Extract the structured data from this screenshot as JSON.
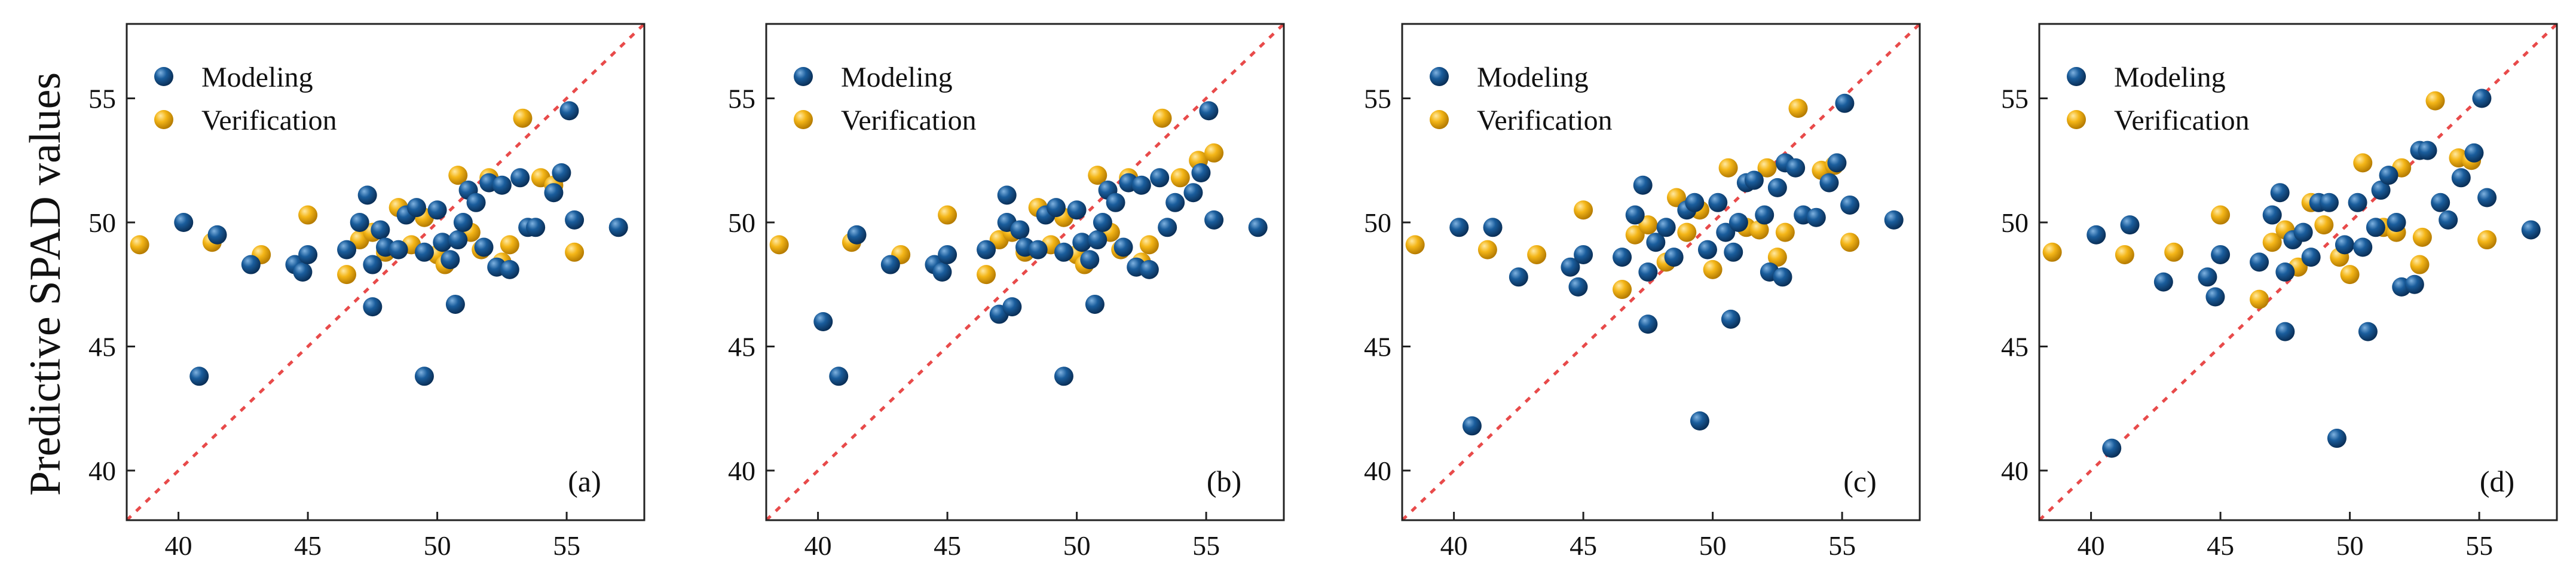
{
  "ylabel": "Predictive SPAD values",
  "colors": {
    "modeling": "#1a5d9c",
    "modeling_highlight": "#7fb2e0",
    "modeling_shadow": "#0a2f57",
    "verification": "#f4b618",
    "verification_highlight": "#ffe9a3",
    "verification_shadow": "#b57b00",
    "reference_line": "#e84a4a",
    "axis": "#222222"
  },
  "legend": {
    "modeling": "Modeling",
    "verification": "Verification"
  },
  "chart_data": [
    {
      "type": "scatter",
      "panel_label": "(a)",
      "xlim": [
        38,
        58
      ],
      "ylim": [
        38,
        58
      ],
      "xticks": [
        40,
        45,
        50,
        55
      ],
      "yticks": [
        40,
        45,
        50,
        55
      ],
      "reference_line": "y = x",
      "series": [
        {
          "name": "Modeling",
          "points": [
            [
              40.2,
              50.0
            ],
            [
              40.8,
              43.8
            ],
            [
              41.5,
              49.5
            ],
            [
              42.8,
              48.3
            ],
            [
              44.5,
              48.3
            ],
            [
              44.8,
              48.0
            ],
            [
              45.0,
              48.7
            ],
            [
              46.5,
              48.9
            ],
            [
              47.0,
              50.0
            ],
            [
              47.3,
              51.1
            ],
            [
              47.5,
              46.6
            ],
            [
              47.5,
              48.3
            ],
            [
              47.8,
              49.7
            ],
            [
              48.0,
              49.0
            ],
            [
              48.5,
              48.9
            ],
            [
              48.8,
              50.3
            ],
            [
              49.2,
              50.6
            ],
            [
              49.5,
              43.8
            ],
            [
              49.5,
              48.8
            ],
            [
              50.0,
              50.5
            ],
            [
              50.2,
              49.2
            ],
            [
              50.5,
              48.5
            ],
            [
              50.7,
              46.7
            ],
            [
              50.8,
              49.3
            ],
            [
              51.0,
              50.0
            ],
            [
              51.2,
              51.3
            ],
            [
              51.5,
              50.8
            ],
            [
              51.8,
              49.0
            ],
            [
              52.0,
              51.6
            ],
            [
              52.3,
              48.2
            ],
            [
              52.5,
              51.5
            ],
            [
              52.8,
              48.1
            ],
            [
              53.2,
              51.8
            ],
            [
              53.5,
              49.8
            ],
            [
              53.8,
              49.8
            ],
            [
              54.5,
              51.2
            ],
            [
              54.8,
              52.0
            ],
            [
              55.1,
              54.5
            ],
            [
              55.3,
              50.1
            ],
            [
              57.0,
              49.8
            ]
          ]
        },
        {
          "name": "Verification",
          "points": [
            [
              38.5,
              49.1
            ],
            [
              41.3,
              49.2
            ],
            [
              43.2,
              48.7
            ],
            [
              45.0,
              50.3
            ],
            [
              46.5,
              47.9
            ],
            [
              47.0,
              49.3
            ],
            [
              47.5,
              49.6
            ],
            [
              48.0,
              48.8
            ],
            [
              48.5,
              50.6
            ],
            [
              49.0,
              49.1
            ],
            [
              49.5,
              50.2
            ],
            [
              50.0,
              48.7
            ],
            [
              50.3,
              48.3
            ],
            [
              50.8,
              51.9
            ],
            [
              51.3,
              49.6
            ],
            [
              51.7,
              48.9
            ],
            [
              52.0,
              51.8
            ],
            [
              52.5,
              48.4
            ],
            [
              52.8,
              49.1
            ],
            [
              53.3,
              54.2
            ],
            [
              54.0,
              51.8
            ],
            [
              54.5,
              51.5
            ],
            [
              55.3,
              48.8
            ]
          ]
        }
      ]
    },
    {
      "type": "scatter",
      "panel_label": "(b)",
      "xlim": [
        38,
        58
      ],
      "ylim": [
        38,
        58
      ],
      "xticks": [
        40,
        45,
        50,
        55
      ],
      "yticks": [
        40,
        45,
        50,
        55
      ],
      "reference_line": "y = x",
      "series": [
        {
          "name": "Modeling",
          "points": [
            [
              40.2,
              46.0
            ],
            [
              40.8,
              43.8
            ],
            [
              41.5,
              49.5
            ],
            [
              42.8,
              48.3
            ],
            [
              44.5,
              48.3
            ],
            [
              44.8,
              48.0
            ],
            [
              45.0,
              48.7
            ],
            [
              46.5,
              48.9
            ],
            [
              47.0,
              46.3
            ],
            [
              47.3,
              51.1
            ],
            [
              47.5,
              46.6
            ],
            [
              47.3,
              50.0
            ],
            [
              47.8,
              49.7
            ],
            [
              48.0,
              49.0
            ],
            [
              48.5,
              48.9
            ],
            [
              48.8,
              50.3
            ],
            [
              49.2,
              50.6
            ],
            [
              49.5,
              43.8
            ],
            [
              49.5,
              48.8
            ],
            [
              50.0,
              50.5
            ],
            [
              50.2,
              49.2
            ],
            [
              50.5,
              48.5
            ],
            [
              50.7,
              46.7
            ],
            [
              50.8,
              49.3
            ],
            [
              51.0,
              50.0
            ],
            [
              51.2,
              51.3
            ],
            [
              51.5,
              50.8
            ],
            [
              51.8,
              49.0
            ],
            [
              52.0,
              51.6
            ],
            [
              52.3,
              48.2
            ],
            [
              52.5,
              51.5
            ],
            [
              52.8,
              48.1
            ],
            [
              53.2,
              51.8
            ],
            [
              53.5,
              49.8
            ],
            [
              53.8,
              50.8
            ],
            [
              54.5,
              51.2
            ],
            [
              54.8,
              52.0
            ],
            [
              55.1,
              54.5
            ],
            [
              55.3,
              50.1
            ],
            [
              57.0,
              49.8
            ]
          ]
        },
        {
          "name": "Verification",
          "points": [
            [
              38.5,
              49.1
            ],
            [
              41.3,
              49.2
            ],
            [
              43.2,
              48.7
            ],
            [
              45.0,
              50.3
            ],
            [
              46.5,
              47.9
            ],
            [
              47.0,
              49.3
            ],
            [
              47.5,
              49.6
            ],
            [
              48.0,
              48.8
            ],
            [
              48.5,
              50.6
            ],
            [
              49.0,
              49.1
            ],
            [
              49.5,
              50.2
            ],
            [
              50.0,
              48.7
            ],
            [
              50.3,
              48.3
            ],
            [
              50.8,
              51.9
            ],
            [
              51.3,
              49.6
            ],
            [
              51.7,
              48.9
            ],
            [
              52.0,
              51.8
            ],
            [
              52.5,
              48.4
            ],
            [
              52.8,
              49.1
            ],
            [
              53.3,
              54.2
            ],
            [
              54.0,
              51.8
            ],
            [
              54.7,
              52.5
            ],
            [
              55.3,
              52.8
            ]
          ]
        }
      ]
    },
    {
      "type": "scatter",
      "panel_label": "(c)",
      "xlim": [
        38,
        58
      ],
      "ylim": [
        38,
        58
      ],
      "xticks": [
        40,
        45,
        50,
        55
      ],
      "yticks": [
        40,
        45,
        50,
        55
      ],
      "reference_line": "y = x",
      "series": [
        {
          "name": "Modeling",
          "points": [
            [
              40.2,
              49.8
            ],
            [
              40.7,
              41.8
            ],
            [
              41.5,
              49.8
            ],
            [
              42.5,
              47.8
            ],
            [
              44.5,
              48.2
            ],
            [
              44.8,
              47.4
            ],
            [
              45.0,
              48.7
            ],
            [
              46.5,
              48.6
            ],
            [
              47.0,
              50.3
            ],
            [
              47.3,
              51.5
            ],
            [
              47.5,
              45.9
            ],
            [
              47.5,
              48.0
            ],
            [
              47.8,
              49.2
            ],
            [
              48.2,
              49.8
            ],
            [
              48.5,
              48.6
            ],
            [
              49.0,
              50.5
            ],
            [
              49.3,
              50.8
            ],
            [
              49.5,
              42.0
            ],
            [
              49.8,
              48.9
            ],
            [
              50.2,
              50.8
            ],
            [
              50.5,
              49.6
            ],
            [
              50.7,
              46.1
            ],
            [
              50.8,
              48.8
            ],
            [
              51.0,
              50.0
            ],
            [
              51.3,
              51.6
            ],
            [
              51.6,
              51.7
            ],
            [
              52.0,
              50.3
            ],
            [
              52.2,
              48.0
            ],
            [
              52.5,
              51.4
            ],
            [
              52.7,
              47.8
            ],
            [
              52.8,
              52.4
            ],
            [
              53.2,
              52.2
            ],
            [
              53.5,
              50.3
            ],
            [
              54.0,
              50.2
            ],
            [
              54.5,
              51.6
            ],
            [
              54.8,
              52.4
            ],
            [
              55.1,
              54.8
            ],
            [
              55.3,
              50.7
            ],
            [
              57.0,
              50.1
            ]
          ]
        },
        {
          "name": "Verification",
          "points": [
            [
              38.5,
              49.1
            ],
            [
              41.3,
              48.9
            ],
            [
              43.2,
              48.7
            ],
            [
              45.0,
              50.5
            ],
            [
              46.5,
              47.3
            ],
            [
              47.0,
              49.5
            ],
            [
              47.5,
              49.9
            ],
            [
              48.2,
              48.4
            ],
            [
              48.6,
              51.0
            ],
            [
              49.0,
              49.6
            ],
            [
              49.5,
              50.5
            ],
            [
              50.0,
              48.1
            ],
            [
              50.6,
              52.2
            ],
            [
              51.3,
              49.8
            ],
            [
              51.8,
              49.7
            ],
            [
              52.1,
              52.2
            ],
            [
              52.5,
              48.6
            ],
            [
              52.8,
              49.6
            ],
            [
              53.3,
              54.6
            ],
            [
              54.2,
              52.1
            ],
            [
              54.7,
              52.3
            ],
            [
              55.3,
              49.2
            ]
          ]
        }
      ]
    },
    {
      "type": "scatter",
      "panel_label": "(d)",
      "xlim": [
        38,
        58
      ],
      "ylim": [
        38,
        58
      ],
      "xticks": [
        40,
        45,
        50,
        55
      ],
      "yticks": [
        40,
        45,
        50,
        55
      ],
      "reference_line": "y = x",
      "series": [
        {
          "name": "Modeling",
          "points": [
            [
              40.2,
              49.5
            ],
            [
              40.8,
              40.9
            ],
            [
              41.5,
              49.9
            ],
            [
              42.8,
              47.6
            ],
            [
              44.5,
              47.8
            ],
            [
              44.8,
              47.0
            ],
            [
              45.0,
              48.7
            ],
            [
              46.5,
              48.4
            ],
            [
              47.0,
              50.3
            ],
            [
              47.3,
              51.2
            ],
            [
              47.5,
              45.6
            ],
            [
              47.5,
              48.0
            ],
            [
              47.8,
              49.3
            ],
            [
              48.2,
              49.6
            ],
            [
              48.5,
              48.6
            ],
            [
              48.8,
              50.8
            ],
            [
              49.2,
              50.8
            ],
            [
              49.5,
              41.3
            ],
            [
              49.8,
              49.1
            ],
            [
              50.3,
              50.8
            ],
            [
              50.5,
              49.0
            ],
            [
              50.7,
              45.6
            ],
            [
              51.0,
              49.8
            ],
            [
              51.2,
              51.3
            ],
            [
              51.5,
              51.9
            ],
            [
              51.8,
              50.0
            ],
            [
              52.0,
              47.4
            ],
            [
              52.5,
              47.5
            ],
            [
              52.7,
              52.9
            ],
            [
              53.0,
              52.9
            ],
            [
              53.5,
              50.8
            ],
            [
              53.8,
              50.1
            ],
            [
              54.3,
              51.8
            ],
            [
              54.8,
              52.8
            ],
            [
              55.1,
              55.0
            ],
            [
              55.3,
              51.0
            ],
            [
              57.0,
              49.7
            ]
          ]
        },
        {
          "name": "Verification",
          "points": [
            [
              38.5,
              48.8
            ],
            [
              41.3,
              48.7
            ],
            [
              43.2,
              48.8
            ],
            [
              45.0,
              50.3
            ],
            [
              46.5,
              46.9
            ],
            [
              47.0,
              49.2
            ],
            [
              47.5,
              49.7
            ],
            [
              48.0,
              48.2
            ],
            [
              48.5,
              50.8
            ],
            [
              49.0,
              49.9
            ],
            [
              49.6,
              48.6
            ],
            [
              50.0,
              47.9
            ],
            [
              50.5,
              52.4
            ],
            [
              51.3,
              49.8
            ],
            [
              51.8,
              49.6
            ],
            [
              52.0,
              52.2
            ],
            [
              52.7,
              48.3
            ],
            [
              52.8,
              49.4
            ],
            [
              53.3,
              54.9
            ],
            [
              54.2,
              52.6
            ],
            [
              54.7,
              52.5
            ],
            [
              55.3,
              49.3
            ]
          ]
        }
      ]
    }
  ]
}
